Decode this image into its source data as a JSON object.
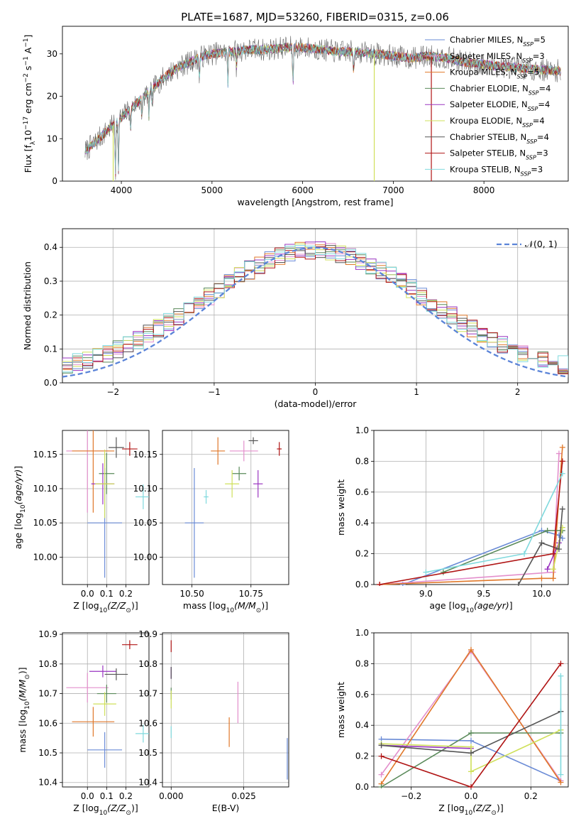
{
  "title": "PLATE=1687, MJD=53260, FIBERID=0315, z=0.06",
  "series": [
    {
      "name": "Chabrier MILES, N_SSP=5",
      "label_main": "Chabrier MILES, N",
      "label_sub": "SSP",
      "label_tail": "=5",
      "color": "#6a8bd6"
    },
    {
      "name": "Salpeter MILES, N_SSP=3",
      "label_main": "Salpeter MILES, N",
      "label_sub": "SSP",
      "label_tail": "=3",
      "color": "#e38fcc"
    },
    {
      "name": "Kroupa MILES, N_SSP=5",
      "label_main": "Kroupa MILES, N",
      "label_sub": "SSP",
      "label_tail": "=5",
      "color": "#e0782a"
    },
    {
      "name": "Chabrier ELODIE, N_SSP=4",
      "label_main": "Chabrier ELODIE, N",
      "label_sub": "SSP",
      "label_tail": "=4",
      "color": "#5a8a5a"
    },
    {
      "name": "Salpeter ELODIE, N_SSP=4",
      "label_main": "Salpeter ELODIE, N",
      "label_sub": "SSP",
      "label_tail": "=4",
      "color": "#9a35c0"
    },
    {
      "name": "Kroupa ELODIE, N_SSP=4",
      "label_main": "Kroupa ELODIE, N",
      "label_sub": "SSP",
      "label_tail": "=4",
      "color": "#cfe05a"
    },
    {
      "name": "Chabrier STELIB, N_SSP=4",
      "label_main": "Chabrier STELIB, N",
      "label_sub": "SSP",
      "label_tail": "=4",
      "color": "#555555"
    },
    {
      "name": "Salpeter STELIB, N_SSP=3",
      "label_main": "Salpeter STELIB, N",
      "label_sub": "SSP",
      "label_tail": "=3",
      "color": "#b01515"
    },
    {
      "name": "Kroupa STELIB, N_SSP=3",
      "label_main": "Kroupa STELIB, N",
      "label_sub": "SSP",
      "label_tail": "=3",
      "color": "#7fd9dd"
    }
  ],
  "chart_data": [
    {
      "id": "spectrum",
      "type": "line",
      "xlabel": "wavelength [Angstrom, rest frame]",
      "ylabel": "Flux [f_λ 10^-17 erg cm^-2 s^-1 A^-1]",
      "xlim": [
        3350,
        8930
      ],
      "ylim": [
        0,
        36.5
      ],
      "xticks": [
        4000,
        5000,
        6000,
        7000,
        8000
      ],
      "yticks": [
        0,
        10,
        20,
        30
      ],
      "grid": false,
      "legend": "right",
      "continuum": [
        [
          3600,
          7
        ],
        [
          3700,
          9
        ],
        [
          3800,
          11
        ],
        [
          3900,
          13
        ],
        [
          4000,
          15
        ],
        [
          4100,
          17
        ],
        [
          4200,
          19
        ],
        [
          4300,
          21
        ],
        [
          4400,
          23
        ],
        [
          4500,
          25
        ],
        [
          4600,
          26.5
        ],
        [
          4700,
          27.5
        ],
        [
          4800,
          28.5
        ],
        [
          4900,
          29.5
        ],
        [
          5000,
          30
        ],
        [
          5200,
          30.5
        ],
        [
          5400,
          31
        ],
        [
          5600,
          31
        ],
        [
          5800,
          31.5
        ],
        [
          6000,
          31.5
        ],
        [
          6200,
          31
        ],
        [
          6400,
          30.5
        ],
        [
          6600,
          30.5
        ],
        [
          6800,
          30
        ],
        [
          7000,
          29.5
        ],
        [
          7200,
          29
        ],
        [
          7400,
          29.5
        ],
        [
          7600,
          29
        ],
        [
          7800,
          28
        ],
        [
          8000,
          27.5
        ],
        [
          8200,
          27
        ],
        [
          8500,
          26.5
        ],
        [
          8800,
          26
        ]
      ],
      "absorption_features": [
        [
          3934,
          13
        ],
        [
          3968,
          12
        ],
        [
          4102,
          5
        ],
        [
          4227,
          5
        ],
        [
          4304,
          6
        ],
        [
          4340,
          5
        ],
        [
          4861,
          5
        ],
        [
          5175,
          8
        ],
        [
          5270,
          4
        ],
        [
          5893,
          10
        ],
        [
          6563,
          5
        ]
      ],
      "dropouts": [
        {
          "series": "Kroupa ELODIE",
          "x": 3910
        },
        {
          "series": "Kroupa ELODIE",
          "x": 6790
        },
        {
          "series": "Salpeter STELIB",
          "x": 7420
        }
      ]
    },
    {
      "id": "residuals",
      "type": "line",
      "xlabel": "(data-model)/error",
      "ylabel": "Normed distribution",
      "xlim": [
        -2.5,
        2.5
      ],
      "ylim": [
        0,
        0.455
      ],
      "xticks": [
        -2,
        -1,
        0,
        1,
        2
      ],
      "yticks": [
        0.0,
        0.1,
        0.2,
        0.3,
        0.4
      ],
      "grid": true,
      "legend": "top-right",
      "reference_curve": "𝒩(0, 1)",
      "bin_width": 0.1
    },
    {
      "id": "age_vs_Z",
      "type": "scatter",
      "xlabel": "Z [log10(Z/Z⊙)]",
      "ylabel": "age [log10(age/yr)]",
      "xlim": [
        -0.13,
        0.32
      ],
      "ylim": [
        9.96,
        10.185
      ],
      "xticks": [
        0.0,
        0.1,
        0.2
      ],
      "yticks": [
        10.0,
        10.05,
        10.1,
        10.15
      ],
      "grid": true,
      "points": [
        {
          "series": "Chabrier MILES",
          "x": 0.09,
          "y": 10.05,
          "xerr": 0.09,
          "yerr": 0.08
        },
        {
          "series": "Salpeter MILES",
          "x": 0.0,
          "y": 10.155,
          "xerr": 0.11,
          "yerr": 0.09
        },
        {
          "series": "Kroupa MILES",
          "x": 0.03,
          "y": 10.155,
          "xerr": 0.11,
          "yerr": 0.09
        },
        {
          "series": "Chabrier ELODIE",
          "x": 0.1,
          "y": 10.122,
          "xerr": 0.04,
          "yerr": 0.03
        },
        {
          "series": "Salpeter ELODIE",
          "x": 0.08,
          "y": 10.107,
          "xerr": 0.06,
          "yerr": 0.03
        },
        {
          "series": "Kroupa ELODIE",
          "x": 0.09,
          "y": 10.107,
          "xerr": 0.05,
          "yerr": 0.05
        },
        {
          "series": "Chabrier STELIB",
          "x": 0.15,
          "y": 10.16,
          "xerr": 0.04,
          "yerr": 0.015
        },
        {
          "series": "Salpeter STELIB",
          "x": 0.22,
          "y": 10.158,
          "xerr": 0.04,
          "yerr": 0.01
        },
        {
          "series": "Kroupa STELIB",
          "x": 0.29,
          "y": 10.088,
          "xerr": 0.04,
          "yerr": 0.018
        }
      ]
    },
    {
      "id": "age_vs_mass",
      "type": "scatter",
      "xlabel": "mass [log10(M/M⊙)]",
      "ylabel": "",
      "xlim": [
        10.375,
        10.91
      ],
      "ylim": [
        9.96,
        10.185
      ],
      "xticks": [
        10.5,
        10.75
      ],
      "yticks": [
        10.0,
        10.05,
        10.1,
        10.15
      ],
      "grid": true,
      "points": [
        {
          "series": "Chabrier MILES",
          "x": 10.51,
          "y": 10.05,
          "xerr": 0.04,
          "yerr": 0.08
        },
        {
          "series": "Salpeter MILES",
          "x": 10.72,
          "y": 10.155,
          "xerr": 0.06,
          "yerr": 0.015
        },
        {
          "series": "Kroupa MILES",
          "x": 10.61,
          "y": 10.155,
          "xerr": 0.03,
          "yerr": 0.02
        },
        {
          "series": "Chabrier ELODIE",
          "x": 10.7,
          "y": 10.122,
          "xerr": 0.03,
          "yerr": 0.01
        },
        {
          "series": "Salpeter ELODIE",
          "x": 10.78,
          "y": 10.107,
          "xerr": 0.02,
          "yerr": 0.02
        },
        {
          "series": "Kroupa ELODIE",
          "x": 10.67,
          "y": 10.107,
          "xerr": 0.03,
          "yerr": 0.02
        },
        {
          "series": "Chabrier STELIB",
          "x": 10.76,
          "y": 10.17,
          "xerr": 0.02,
          "yerr": 0.005
        },
        {
          "series": "Salpeter STELIB",
          "x": 10.87,
          "y": 10.158,
          "xerr": 0.01,
          "yerr": 0.01
        },
        {
          "series": "Kroupa STELIB",
          "x": 10.56,
          "y": 10.088,
          "xerr": 0.01,
          "yerr": 0.01
        }
      ]
    },
    {
      "id": "mass_weight_vs_age",
      "type": "line",
      "xlabel": "age [log10(age/yr)]",
      "ylabel": "mass weight",
      "xlim": [
        8.55,
        10.23
      ],
      "ylim": [
        0.0,
        1.0
      ],
      "xticks": [
        9.0,
        9.5,
        10.0
      ],
      "yticks": [
        0.0,
        0.2,
        0.4,
        0.6,
        0.8,
        1.0
      ],
      "grid": true,
      "lines": [
        {
          "series": "Chabrier MILES",
          "points": [
            [
              8.8,
              0.0
            ],
            [
              10.0,
              0.35
            ],
            [
              10.15,
              0.32
            ],
            [
              10.18,
              0.3
            ]
          ]
        },
        {
          "series": "Salpeter MILES",
          "points": [
            [
              8.6,
              0.0
            ],
            [
              10.1,
              0.08
            ],
            [
              10.15,
              0.85
            ]
          ]
        },
        {
          "series": "Kroupa MILES",
          "points": [
            [
              8.6,
              0.0
            ],
            [
              10.0,
              0.04
            ],
            [
              10.1,
              0.04
            ],
            [
              10.18,
              0.89
            ]
          ]
        },
        {
          "series": "Chabrier ELODIE",
          "points": [
            [
              9.15,
              0.08
            ],
            [
              10.05,
              0.35
            ],
            [
              10.18,
              0.35
            ]
          ]
        },
        {
          "series": "Salpeter ELODIE",
          "points": [
            [
              10.05,
              0.1
            ],
            [
              10.15,
              0.27
            ]
          ]
        },
        {
          "series": "Kroupa ELODIE",
          "points": [
            [
              10.1,
              0.1
            ],
            [
              10.18,
              0.37
            ]
          ]
        },
        {
          "series": "Chabrier STELIB",
          "points": [
            [
              9.8,
              0.0
            ],
            [
              10.0,
              0.27
            ],
            [
              10.15,
              0.23
            ],
            [
              10.18,
              0.49
            ]
          ]
        },
        {
          "series": "Salpeter STELIB",
          "points": [
            [
              8.6,
              0.0
            ],
            [
              10.1,
              0.2
            ],
            [
              10.18,
              0.8
            ]
          ]
        },
        {
          "series": "Kroupa STELIB",
          "points": [
            [
              9.0,
              0.08
            ],
            [
              9.85,
              0.2
            ],
            [
              10.18,
              0.72
            ]
          ]
        }
      ]
    },
    {
      "id": "mass_vs_Z",
      "type": "scatter",
      "xlabel": "Z [log10(Z/Z⊙)]",
      "ylabel": "mass [log10(M/M⊙)]",
      "xlim": [
        -0.13,
        0.32
      ],
      "ylim": [
        10.385,
        10.905
      ],
      "xticks": [
        0.0,
        0.1,
        0.2
      ],
      "yticks": [
        10.4,
        10.5,
        10.6,
        10.7,
        10.8,
        10.9
      ],
      "grid": true,
      "points": [
        {
          "series": "Chabrier MILES",
          "x": 0.09,
          "y": 10.51,
          "xerr": 0.09,
          "yerr": 0.06
        },
        {
          "series": "Salpeter MILES",
          "x": 0.0,
          "y": 10.72,
          "xerr": 0.11,
          "yerr": 0.05
        },
        {
          "series": "Kroupa MILES",
          "x": 0.03,
          "y": 10.605,
          "xerr": 0.11,
          "yerr": 0.05
        },
        {
          "series": "Chabrier ELODIE",
          "x": 0.1,
          "y": 10.7,
          "xerr": 0.05,
          "yerr": 0.03
        },
        {
          "series": "Salpeter ELODIE",
          "x": 0.08,
          "y": 10.775,
          "xerr": 0.07,
          "yerr": 0.02
        },
        {
          "series": "Kroupa ELODIE",
          "x": 0.09,
          "y": 10.665,
          "xerr": 0.06,
          "yerr": 0.04
        },
        {
          "series": "Chabrier STELIB",
          "x": 0.15,
          "y": 10.765,
          "xerr": 0.06,
          "yerr": 0.02
        },
        {
          "series": "Salpeter STELIB",
          "x": 0.22,
          "y": 10.865,
          "xerr": 0.04,
          "yerr": 0.015
        },
        {
          "series": "Kroupa STELIB",
          "x": 0.29,
          "y": 10.565,
          "xerr": 0.04,
          "yerr": 0.03
        }
      ]
    },
    {
      "id": "mass_vs_EBV",
      "type": "scatter",
      "xlabel": "E(B-V)",
      "ylabel": "",
      "xlim": [
        -0.003,
        0.0405
      ],
      "ylim": [
        10.385,
        10.905
      ],
      "xticks": [
        0.0,
        0.025
      ],
      "yticks": [
        10.4,
        10.5,
        10.6,
        10.7,
        10.8,
        10.9
      ],
      "grid": true,
      "points": [
        {
          "series": "Chabrier MILES",
          "x": 0.04,
          "y": 10.48,
          "xerr": 0.0,
          "yerr": 0.07
        },
        {
          "series": "Salpeter MILES",
          "x": 0.023,
          "y": 10.67,
          "xerr": 0.0,
          "yerr": 0.07
        },
        {
          "series": "Kroupa MILES",
          "x": 0.02,
          "y": 10.57,
          "xerr": 0.0,
          "yerr": 0.05
        },
        {
          "series": "Chabrier ELODIE",
          "x": 0.0,
          "y": 10.7,
          "xerr": 0.0,
          "yerr": 0.02
        },
        {
          "series": "Salpeter ELODIE",
          "x": 0.0,
          "y": 10.77,
          "xerr": 0.0,
          "yerr": 0.02
        },
        {
          "series": "Kroupa ELODIE",
          "x": 0.0,
          "y": 10.68,
          "xerr": 0.0,
          "yerr": 0.03
        },
        {
          "series": "Chabrier STELIB",
          "x": 0.0,
          "y": 10.77,
          "xerr": 0.0,
          "yerr": 0.02
        },
        {
          "series": "Salpeter STELIB",
          "x": 0.0,
          "y": 10.86,
          "xerr": 0.0,
          "yerr": 0.02
        },
        {
          "series": "Kroupa STELIB",
          "x": 0.0,
          "y": 10.57,
          "xerr": 0.0,
          "yerr": 0.02
        }
      ]
    },
    {
      "id": "mass_weight_vs_Z",
      "type": "line",
      "xlabel": "Z [log10(Z/Z⊙)]",
      "ylabel": "mass weight",
      "xlim": [
        -0.325,
        0.325
      ],
      "ylim": [
        0.0,
        1.0
      ],
      "xticks": [
        -0.2,
        0.0,
        0.2
      ],
      "yticks": [
        0.0,
        0.2,
        0.4,
        0.6,
        0.8,
        1.0
      ],
      "grid": true,
      "lines": [
        {
          "series": "Chabrier MILES",
          "points": [
            [
              -0.3,
              0.31
            ],
            [
              0.0,
              0.3
            ],
            [
              0.3,
              0.04
            ]
          ]
        },
        {
          "series": "Salpeter MILES",
          "points": [
            [
              -0.3,
              0.08
            ],
            [
              0.0,
              0.88
            ],
            [
              0.3,
              0.04
            ]
          ]
        },
        {
          "series": "Kroupa MILES",
          "points": [
            [
              -0.3,
              0.02
            ],
            [
              0.0,
              0.89
            ],
            [
              0.3,
              0.03
            ]
          ]
        },
        {
          "series": "Chabrier ELODIE",
          "points": [
            [
              -0.3,
              0.0
            ],
            [
              0.0,
              0.35
            ],
            [
              0.3,
              0.35
            ]
          ]
        },
        {
          "series": "Salpeter ELODIE",
          "points": [
            [
              -0.3,
              0.27
            ],
            [
              0.0,
              0.25
            ]
          ]
        },
        {
          "series": "Kroupa ELODIE",
          "points": [
            [
              -0.3,
              0.28
            ],
            [
              0.0,
              0.26
            ],
            [
              0.0,
              0.1
            ],
            [
              0.3,
              0.37
            ]
          ]
        },
        {
          "series": "Chabrier STELIB",
          "points": [
            [
              -0.3,
              0.27
            ],
            [
              0.0,
              0.22
            ],
            [
              0.3,
              0.49
            ]
          ]
        },
        {
          "series": "Salpeter STELIB",
          "points": [
            [
              -0.3,
              0.2
            ],
            [
              0.0,
              0.0
            ],
            [
              0.3,
              0.8
            ]
          ]
        },
        {
          "series": "Kroupa STELIB",
          "points": [
            [
              0.3,
              0.08
            ],
            [
              0.3,
              0.72
            ]
          ]
        }
      ]
    }
  ]
}
